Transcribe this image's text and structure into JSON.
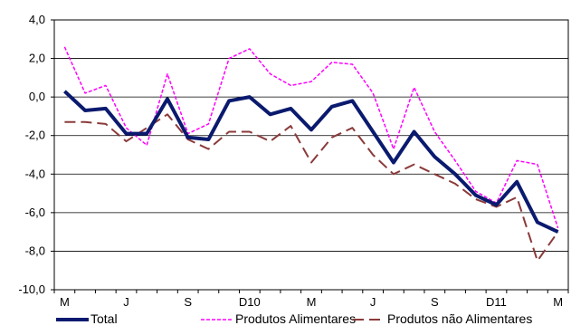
{
  "chart_data": {
    "type": "line",
    "title": "",
    "xlabel": "",
    "ylabel": "",
    "ylim": [
      -10,
      4
    ],
    "yticks": [
      "4,0",
      "2,0",
      "0,0",
      "-2,0",
      "-4,0",
      "-6,0",
      "-8,0",
      "-10,0"
    ],
    "ytick_values": [
      4,
      2,
      0,
      -2,
      -4,
      -6,
      -8,
      -10
    ],
    "x_count": 25,
    "xtick_labels": [
      {
        "index": 0,
        "label": "M"
      },
      {
        "index": 3,
        "label": "J"
      },
      {
        "index": 6,
        "label": "S"
      },
      {
        "index": 9,
        "label": "D10"
      },
      {
        "index": 12,
        "label": "M"
      },
      {
        "index": 15,
        "label": "J"
      },
      {
        "index": 18,
        "label": "S"
      },
      {
        "index": 21,
        "label": "D11"
      },
      {
        "index": 24,
        "label": "M"
      }
    ],
    "grid": "horizontal",
    "legend_position": "bottom",
    "series": [
      {
        "name": "Total",
        "color": "#0a1a6e",
        "style": "solid",
        "values": [
          0.3,
          -0.7,
          -0.6,
          -1.9,
          -1.9,
          -0.1,
          -2.1,
          -2.2,
          -0.2,
          0.0,
          -0.9,
          -0.6,
          -1.7,
          -0.5,
          -0.2,
          -1.8,
          -3.4,
          -1.8,
          -3.1,
          -4.0,
          -5.1,
          -5.6,
          -4.4,
          -6.5,
          -7.0
        ]
      },
      {
        "name": "Produtos Alimentares",
        "color": "#ff00ff",
        "style": "dotted",
        "values": [
          2.6,
          0.2,
          0.6,
          -1.6,
          -2.5,
          1.2,
          -1.9,
          -1.4,
          2.0,
          2.5,
          1.2,
          0.6,
          0.8,
          1.8,
          1.7,
          0.2,
          -2.7,
          0.5,
          -1.8,
          -3.3,
          -4.9,
          -5.5,
          -3.3,
          -3.5,
          -6.8
        ]
      },
      {
        "name": "Produtos não Alimentares",
        "color": "#8b3a3a",
        "style": "dashed",
        "values": [
          -1.3,
          -1.3,
          -1.4,
          -2.3,
          -1.6,
          -0.9,
          -2.2,
          -2.7,
          -1.8,
          -1.8,
          -2.3,
          -1.5,
          -3.4,
          -2.1,
          -1.6,
          -3.0,
          -4.0,
          -3.5,
          -4.0,
          -4.5,
          -5.3,
          -5.7,
          -5.2,
          -8.5,
          -7.0
        ]
      }
    ]
  }
}
